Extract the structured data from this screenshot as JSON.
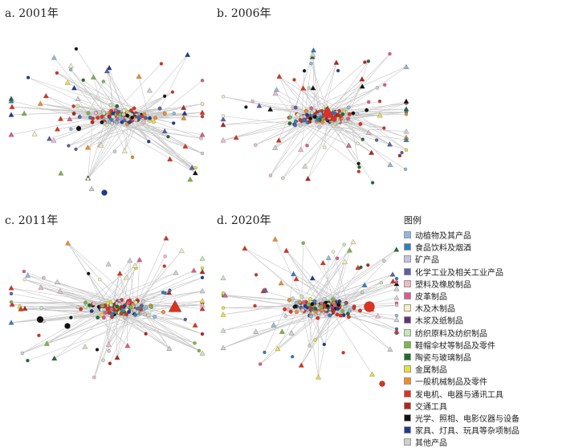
{
  "panels": [
    {
      "id": "a",
      "label": "a. 2001年"
    },
    {
      "id": "b",
      "label": "b. 2006年"
    },
    {
      "id": "c",
      "label": "c. 2011年"
    },
    {
      "id": "d",
      "label": "d. 2020年"
    }
  ],
  "legend": {
    "title": "图例",
    "items": [
      {
        "label": "动植物及其产品",
        "color": "#8fb8de"
      },
      {
        "label": "食品饮料及烟酒",
        "color": "#2f7fc1"
      },
      {
        "label": "矿产品",
        "color": "#c6c2e0"
      },
      {
        "label": "化学工业及相关工业产品",
        "color": "#5b5ea6"
      },
      {
        "label": "塑料及橡胶制品",
        "color": "#f2b8c6"
      },
      {
        "label": "皮革制品",
        "color": "#e05a8c"
      },
      {
        "label": "木及木制品",
        "color": "#f4f0b8"
      },
      {
        "label": "木浆及纸制品",
        "color": "#6b2f7a"
      },
      {
        "label": "纺织原料及纺织制品",
        "color": "#c8e6b8"
      },
      {
        "label": "鞋帽伞杖等制品及零件",
        "color": "#7ab648"
      },
      {
        "label": "陶瓷与玻璃制品",
        "color": "#1f6b32"
      },
      {
        "label": "金属制品",
        "color": "#e8e03a"
      },
      {
        "label": "一般机械制品及零件",
        "color": "#f28c28"
      },
      {
        "label": "发电机、电器与通讯工具",
        "color": "#e0301e"
      },
      {
        "label": "交通工具",
        "color": "#b8231a"
      },
      {
        "label": "光学、照相、电影仪器与设备",
        "color": "#111111"
      },
      {
        "label": "家具、灯具、玩具等杂项制品",
        "color": "#1f3a93"
      },
      {
        "label": "其他产品",
        "color": "#cfcfcf"
      }
    ]
  }
}
